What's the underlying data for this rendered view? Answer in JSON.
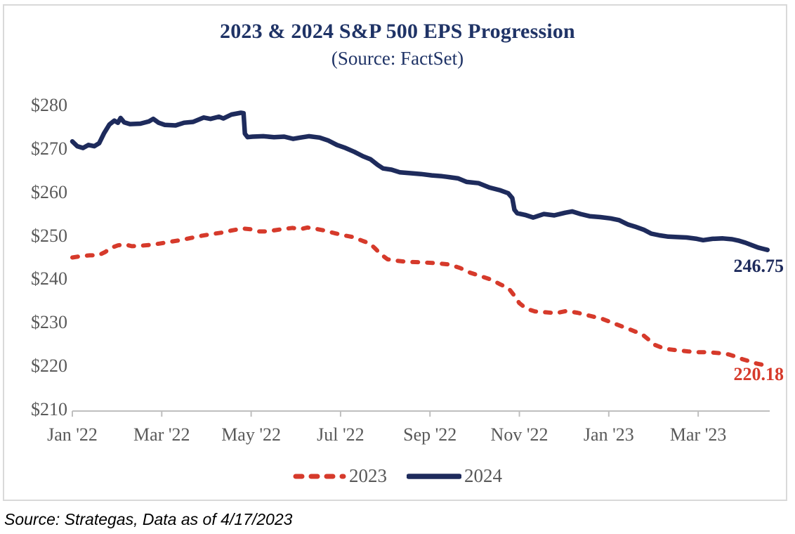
{
  "window": {
    "background": "#ffffff",
    "frame_border_color": "#d9d9d9"
  },
  "footer": {
    "source_note": "Source: Strategas, Data as of 4/17/2023"
  },
  "chart_data": {
    "type": "line",
    "title": "2023 & 2024 S&P 500 EPS Progression",
    "subtitle": "(Source: FactSet)",
    "title_color": "#1f3366",
    "tick_label_color": "#595959",
    "axis_line_color": "#bfbfbf",
    "ylim": [
      210,
      280
    ],
    "grid": "off",
    "legend_position": "bottom",
    "y_ticks": {
      "values": [
        280,
        270,
        260,
        250,
        240,
        230,
        220,
        210
      ],
      "labels": [
        "$280",
        "$270",
        "$260",
        "$250",
        "$240",
        "$230",
        "$220",
        "$210"
      ]
    },
    "x_axis": {
      "months_max": 15.6,
      "tick_months": [
        0,
        2,
        4,
        6,
        8,
        10,
        12,
        14
      ],
      "tick_labels": [
        "Jan '22",
        "Mar '22",
        "May '22",
        "Jul '22",
        "Sep '22",
        "Nov '22",
        "Jan '23",
        "Mar '23"
      ]
    },
    "series": [
      {
        "name": "2023",
        "style": "dashed",
        "color": "#d63a2b",
        "end_label": "220.18",
        "points": [
          [
            0.0,
            245.0
          ],
          [
            0.19,
            245.3
          ],
          [
            0.39,
            245.5
          ],
          [
            0.58,
            245.5
          ],
          [
            0.74,
            246.3
          ],
          [
            0.86,
            247.2
          ],
          [
            1.02,
            247.8
          ],
          [
            1.18,
            248.0
          ],
          [
            1.33,
            247.6
          ],
          [
            1.52,
            247.7
          ],
          [
            1.73,
            247.9
          ],
          [
            1.95,
            248.2
          ],
          [
            2.18,
            248.6
          ],
          [
            2.42,
            249.0
          ],
          [
            2.65,
            249.5
          ],
          [
            2.89,
            250.0
          ],
          [
            3.12,
            250.4
          ],
          [
            3.33,
            250.7
          ],
          [
            3.56,
            251.2
          ],
          [
            3.8,
            251.7
          ],
          [
            3.99,
            251.5
          ],
          [
            4.16,
            251.0
          ],
          [
            4.35,
            251.0
          ],
          [
            4.55,
            251.3
          ],
          [
            4.74,
            251.6
          ],
          [
            4.93,
            251.8
          ],
          [
            5.1,
            251.5
          ],
          [
            5.26,
            251.9
          ],
          [
            5.45,
            251.6
          ],
          [
            5.64,
            251.2
          ],
          [
            5.87,
            250.6
          ],
          [
            6.08,
            250.1
          ],
          [
            6.28,
            249.7
          ],
          [
            6.5,
            248.8
          ],
          [
            6.66,
            248.2
          ],
          [
            6.78,
            247.0
          ],
          [
            6.91,
            245.7
          ],
          [
            7.05,
            244.6
          ],
          [
            7.22,
            244.3
          ],
          [
            7.49,
            244.0
          ],
          [
            7.8,
            243.9
          ],
          [
            8.12,
            243.7
          ],
          [
            8.43,
            243.4
          ],
          [
            8.67,
            242.6
          ],
          [
            8.9,
            241.5
          ],
          [
            9.14,
            240.7
          ],
          [
            9.37,
            239.9
          ],
          [
            9.58,
            238.8
          ],
          [
            9.76,
            237.9
          ],
          [
            9.89,
            236.2
          ],
          [
            10.0,
            234.5
          ],
          [
            10.16,
            233.2
          ],
          [
            10.35,
            232.6
          ],
          [
            10.58,
            232.4
          ],
          [
            10.82,
            232.2
          ],
          [
            11.05,
            232.7
          ],
          [
            11.3,
            232.3
          ],
          [
            11.57,
            231.6
          ],
          [
            11.85,
            230.9
          ],
          [
            12.15,
            229.7
          ],
          [
            12.51,
            228.3
          ],
          [
            12.75,
            227.3
          ],
          [
            12.87,
            226.3
          ],
          [
            13.03,
            224.9
          ],
          [
            13.25,
            224.0
          ],
          [
            13.5,
            223.7
          ],
          [
            13.77,
            223.4
          ],
          [
            14.0,
            223.2
          ],
          [
            14.24,
            223.2
          ],
          [
            14.47,
            223.0
          ],
          [
            14.68,
            222.7
          ],
          [
            14.84,
            222.2
          ],
          [
            14.99,
            221.6
          ],
          [
            15.15,
            221.1
          ],
          [
            15.31,
            220.6
          ],
          [
            15.5,
            220.18
          ]
        ]
      },
      {
        "name": "2024",
        "style": "solid",
        "color": "#1e2b5c",
        "end_label": "246.75",
        "points": [
          [
            0.0,
            271.7
          ],
          [
            0.11,
            270.6
          ],
          [
            0.24,
            270.2
          ],
          [
            0.36,
            270.9
          ],
          [
            0.49,
            270.6
          ],
          [
            0.6,
            271.3
          ],
          [
            0.71,
            273.6
          ],
          [
            0.83,
            275.6
          ],
          [
            0.94,
            276.5
          ],
          [
            1.02,
            276.0
          ],
          [
            1.08,
            277.1
          ],
          [
            1.16,
            276.1
          ],
          [
            1.29,
            275.7
          ],
          [
            1.52,
            275.8
          ],
          [
            1.71,
            276.3
          ],
          [
            1.81,
            276.9
          ],
          [
            1.93,
            276.0
          ],
          [
            2.07,
            275.5
          ],
          [
            2.31,
            275.4
          ],
          [
            2.5,
            276.0
          ],
          [
            2.7,
            276.2
          ],
          [
            2.94,
            277.2
          ],
          [
            3.09,
            276.9
          ],
          [
            3.28,
            277.4
          ],
          [
            3.38,
            277.0
          ],
          [
            3.56,
            277.9
          ],
          [
            3.77,
            278.3
          ],
          [
            3.83,
            278.2
          ],
          [
            3.86,
            273.5
          ],
          [
            3.92,
            272.7
          ],
          [
            4.03,
            272.8
          ],
          [
            4.27,
            272.9
          ],
          [
            4.51,
            272.7
          ],
          [
            4.74,
            272.8
          ],
          [
            4.94,
            272.3
          ],
          [
            5.1,
            272.6
          ],
          [
            5.29,
            272.9
          ],
          [
            5.53,
            272.6
          ],
          [
            5.73,
            271.9
          ],
          [
            5.92,
            270.9
          ],
          [
            6.11,
            270.2
          ],
          [
            6.31,
            269.3
          ],
          [
            6.5,
            268.3
          ],
          [
            6.67,
            267.6
          ],
          [
            6.83,
            266.3
          ],
          [
            6.95,
            265.5
          ],
          [
            7.14,
            265.2
          ],
          [
            7.33,
            264.6
          ],
          [
            7.57,
            264.4
          ],
          [
            7.8,
            264.2
          ],
          [
            8.04,
            263.9
          ],
          [
            8.27,
            263.7
          ],
          [
            8.43,
            263.5
          ],
          [
            8.63,
            263.2
          ],
          [
            8.82,
            262.4
          ],
          [
            9.09,
            262.1
          ],
          [
            9.33,
            261.1
          ],
          [
            9.56,
            260.5
          ],
          [
            9.75,
            259.8
          ],
          [
            9.84,
            258.7
          ],
          [
            9.89,
            256.0
          ],
          [
            9.95,
            255.2
          ],
          [
            10.13,
            254.8
          ],
          [
            10.31,
            254.2
          ],
          [
            10.55,
            255.0
          ],
          [
            10.78,
            254.7
          ],
          [
            11.02,
            255.3
          ],
          [
            11.18,
            255.6
          ],
          [
            11.37,
            255.0
          ],
          [
            11.57,
            254.5
          ],
          [
            11.81,
            254.3
          ],
          [
            12.04,
            254.0
          ],
          [
            12.23,
            253.6
          ],
          [
            12.43,
            252.6
          ],
          [
            12.59,
            252.1
          ],
          [
            12.78,
            251.4
          ],
          [
            12.95,
            250.5
          ],
          [
            13.14,
            250.1
          ],
          [
            13.33,
            249.8
          ],
          [
            13.53,
            249.7
          ],
          [
            13.74,
            249.6
          ],
          [
            13.97,
            249.3
          ],
          [
            14.11,
            249.0
          ],
          [
            14.32,
            249.3
          ],
          [
            14.55,
            249.4
          ],
          [
            14.76,
            249.2
          ],
          [
            14.9,
            248.9
          ],
          [
            15.06,
            248.4
          ],
          [
            15.21,
            247.8
          ],
          [
            15.34,
            247.3
          ],
          [
            15.45,
            247.0
          ],
          [
            15.55,
            246.75
          ]
        ]
      }
    ]
  }
}
